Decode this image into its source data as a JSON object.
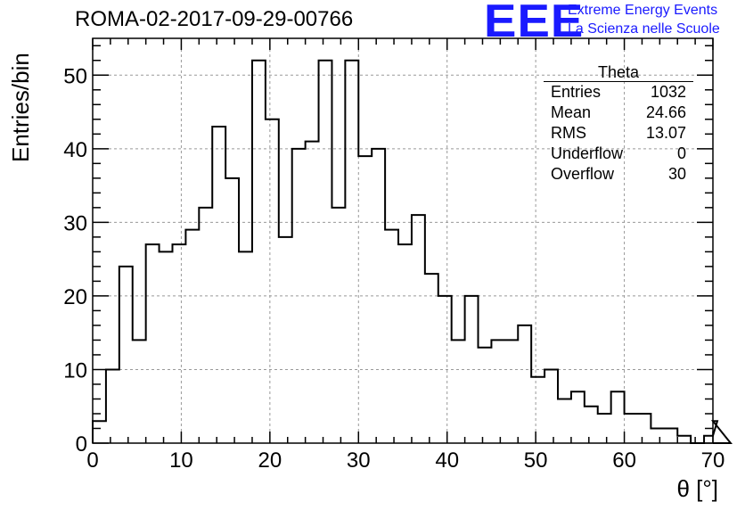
{
  "header": {
    "title": "ROMA-02-2017-09-29-00766",
    "logo_text": "EEE",
    "logo_line1": "Extreme Energy Events",
    "logo_line2": "La Scienza nelle Scuole"
  },
  "stats_box": {
    "name": "Theta",
    "rows": [
      {
        "label": "Entries",
        "value": "1032"
      },
      {
        "label": "Mean",
        "value": "24.66"
      },
      {
        "label": "RMS",
        "value": "13.07"
      },
      {
        "label": "Underflow",
        "value": "0"
      },
      {
        "label": "Overflow",
        "value": "30"
      }
    ]
  },
  "colors": {
    "line": "#000000",
    "grid": "#999999",
    "logo": "#1a1aff"
  },
  "chart_data": {
    "type": "bar",
    "histogram": true,
    "xlabel": "θ [°]",
    "ylabel": "Entries/bin",
    "xlim": [
      0,
      70
    ],
    "ylim": [
      0,
      55
    ],
    "grid": true,
    "bin_width": 1.5,
    "bin_edges_start": 0,
    "x_ticks": [
      0,
      10,
      20,
      30,
      40,
      50,
      60,
      70
    ],
    "y_ticks": [
      0,
      10,
      20,
      30,
      40,
      50
    ],
    "values": [
      3,
      10,
      24,
      14,
      27,
      26,
      27,
      29,
      32,
      43,
      36,
      26,
      52,
      44,
      28,
      40,
      41,
      52,
      32,
      52,
      39,
      40,
      29,
      27,
      31,
      23,
      20,
      14,
      20,
      13,
      14,
      14,
      16,
      9,
      10,
      6,
      7,
      5,
      4,
      7,
      4,
      4,
      2,
      2,
      1,
      0,
      1,
      3,
      0
    ]
  }
}
